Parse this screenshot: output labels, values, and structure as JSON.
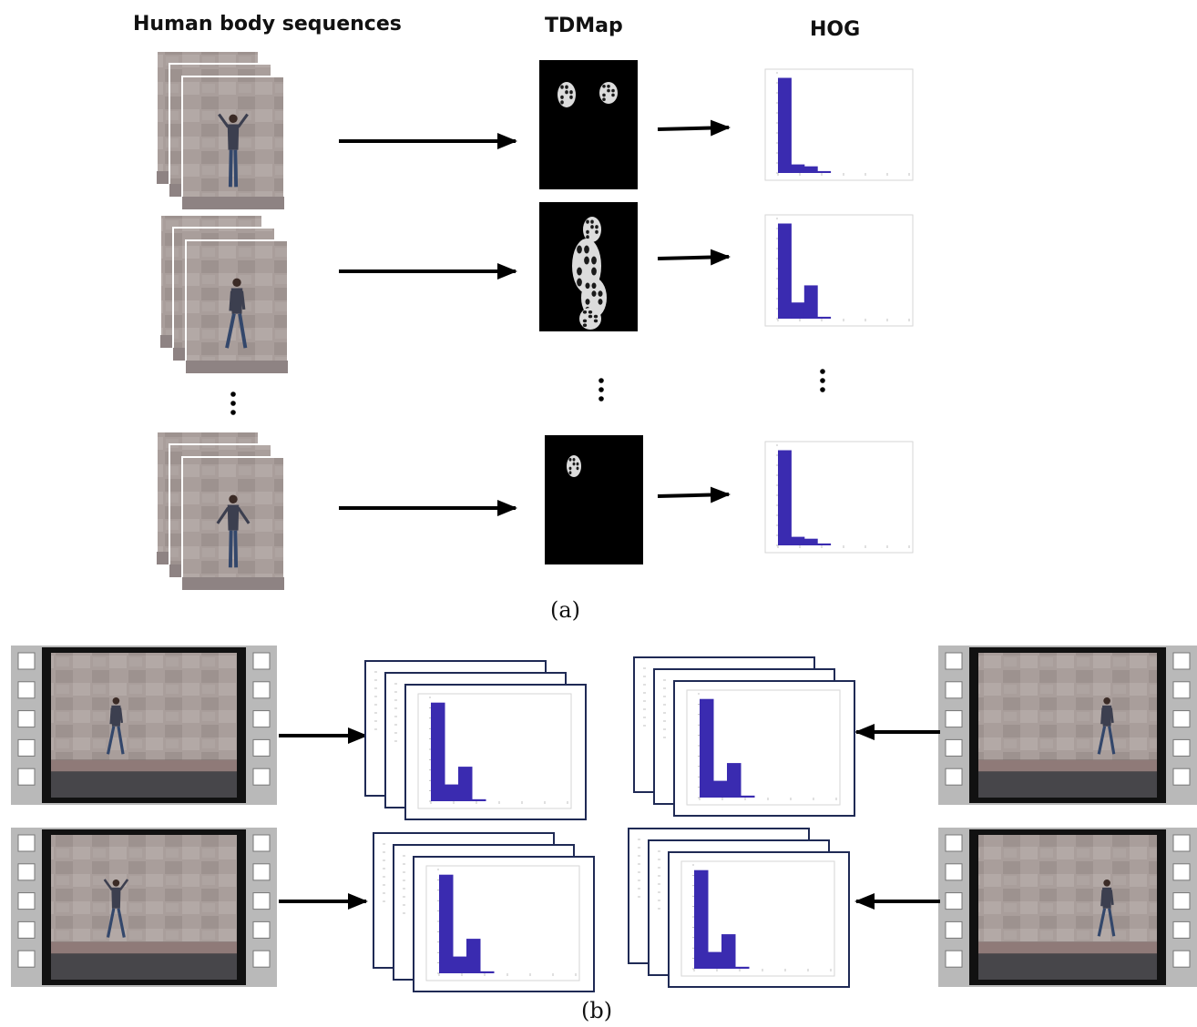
{
  "panel_a": {
    "label": "(a)",
    "headings": {
      "sequences": "Human body sequences",
      "tdmap": "TDMap",
      "hog": "HOG"
    }
  },
  "panel_b": {
    "label": "(b)"
  },
  "colors": {
    "histogram_bar": "#3a2bb0",
    "tdmap_background": "#000000",
    "wall": "#a69a96",
    "ground": "#47464a",
    "film_strip": "#b9b9b9",
    "arrow": "#000000"
  }
}
